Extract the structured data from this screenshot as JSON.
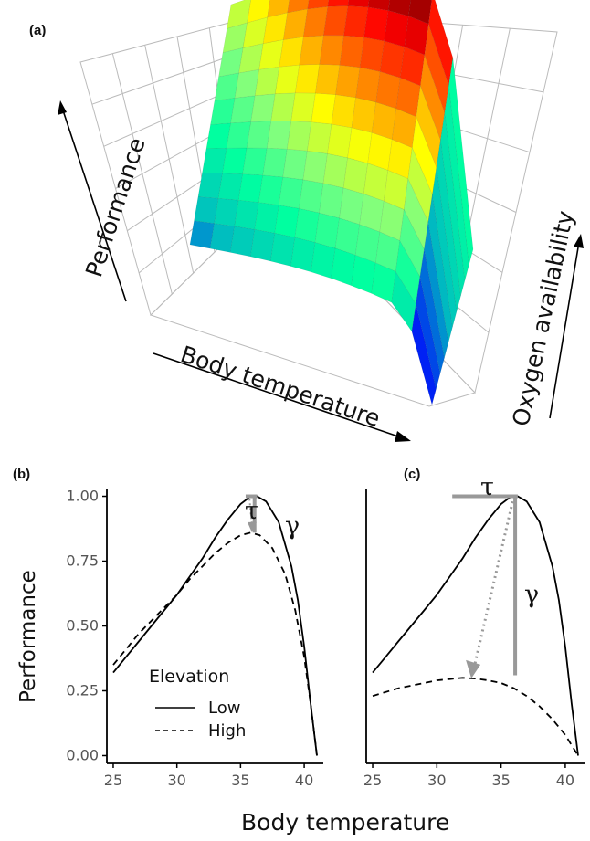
{
  "panel_a": {
    "letter": "(a)",
    "axis_performance": "Performance",
    "axis_body_temperature": "Body temperature",
    "axis_oxygen": "Oxygen availability"
  },
  "panel_b": {
    "letter": "(b)"
  },
  "panel_c": {
    "letter": "(c)"
  },
  "shared": {
    "ylabel": "Performance",
    "xlabel": "Body temperature",
    "tau": "τ",
    "gamma": "γ",
    "legend": {
      "title": "Elevation",
      "low": "Low",
      "high": "High"
    },
    "colors": {
      "curve": "#000000",
      "arrow": "#999999",
      "bracket": "#999999"
    }
  },
  "chart_data": [
    {
      "type": "surface",
      "panel": "(a)",
      "xlabel": "Body temperature",
      "ylabel": "Oxygen availability",
      "zlabel": "Performance",
      "colormap": [
        "#00008f",
        "#0000ff",
        "#00bfbf",
        "#00ffa0",
        "#7fff7f",
        "#ffff00",
        "#ff8000",
        "#ff0000",
        "#800000"
      ]
    },
    {
      "type": "line",
      "panel": "(b)",
      "xlim": [
        24.5,
        41.5
      ],
      "ylim": [
        -0.03,
        1.03
      ],
      "xticks": [
        25,
        30,
        35,
        40
      ],
      "yticks": [
        "0.00",
        "0.25",
        "0.50",
        "0.75",
        "1.00"
      ],
      "series": [
        {
          "name": "Low",
          "style": "solid",
          "x": [
            25,
            26,
            27,
            28,
            29,
            30,
            31,
            32,
            33,
            34,
            35,
            35.8,
            36.3,
            37,
            38,
            39,
            39.5,
            40,
            40.5,
            41
          ],
          "y": [
            0.32,
            0.38,
            0.44,
            0.5,
            0.56,
            0.62,
            0.69,
            0.76,
            0.84,
            0.91,
            0.97,
            1.0,
            1.0,
            0.98,
            0.9,
            0.73,
            0.6,
            0.42,
            0.2,
            0.0
          ]
        },
        {
          "name": "High",
          "style": "dashed",
          "x": [
            25,
            26,
            27,
            28,
            29,
            30,
            31,
            32,
            33,
            34,
            35,
            35.8,
            36.5,
            37.5,
            38.5,
            39.3,
            40,
            40.5,
            41
          ],
          "y": [
            0.35,
            0.41,
            0.47,
            0.52,
            0.57,
            0.62,
            0.68,
            0.73,
            0.78,
            0.82,
            0.85,
            0.86,
            0.85,
            0.8,
            0.7,
            0.56,
            0.38,
            0.2,
            0.0
          ]
        }
      ]
    },
    {
      "type": "line",
      "panel": "(c)",
      "xlim": [
        24.5,
        41.5
      ],
      "ylim": [
        -0.03,
        1.03
      ],
      "xticks": [
        25,
        30,
        35,
        40
      ],
      "series": [
        {
          "name": "Low",
          "style": "solid",
          "x": [
            25,
            26,
            27,
            28,
            29,
            30,
            31,
            32,
            33,
            34,
            35,
            35.8,
            36.3,
            37,
            38,
            39,
            39.5,
            40,
            40.5,
            41
          ],
          "y": [
            0.32,
            0.38,
            0.44,
            0.5,
            0.56,
            0.62,
            0.69,
            0.76,
            0.84,
            0.91,
            0.97,
            1.0,
            1.0,
            0.98,
            0.9,
            0.73,
            0.6,
            0.42,
            0.2,
            0.0
          ]
        },
        {
          "name": "High",
          "style": "dashed",
          "x": [
            25,
            26,
            27,
            28,
            29,
            30,
            31,
            32,
            33,
            34,
            35,
            36,
            37,
            38,
            39,
            40,
            40.5,
            41
          ],
          "y": [
            0.23,
            0.245,
            0.26,
            0.27,
            0.28,
            0.29,
            0.295,
            0.3,
            0.297,
            0.29,
            0.28,
            0.26,
            0.23,
            0.19,
            0.14,
            0.08,
            0.04,
            0.0
          ]
        }
      ]
    }
  ]
}
